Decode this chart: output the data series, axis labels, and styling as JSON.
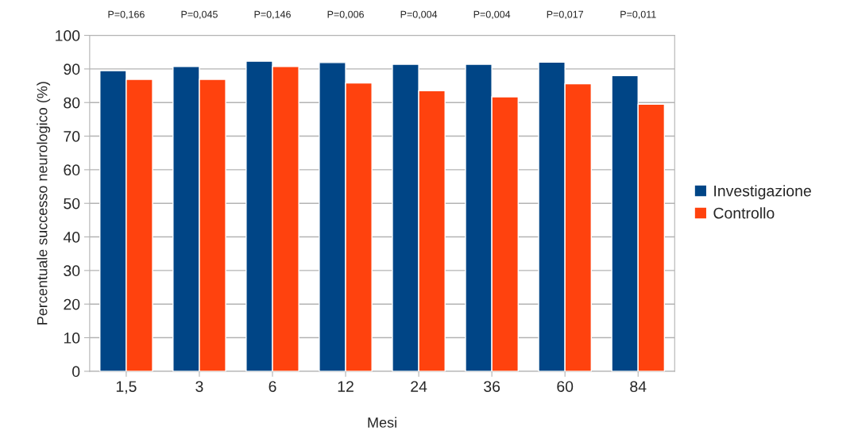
{
  "chart_data": {
    "type": "bar",
    "xlabel": "Mesi",
    "ylabel": "Percentuale successo neurologico (%)",
    "categories": [
      "1,5",
      "3",
      "6",
      "12",
      "24",
      "36",
      "60",
      "84"
    ],
    "series": [
      {
        "name": "Investigazione",
        "color": "#004586",
        "values": [
          89.5,
          90.7,
          92.3,
          91.9,
          91.4,
          91.4,
          92,
          88
        ]
      },
      {
        "name": "Controllo",
        "color": "#ff420e",
        "values": [
          86.9,
          86.9,
          90.7,
          85.8,
          83.5,
          81.7,
          85.6,
          79.5
        ]
      }
    ],
    "ylim": [
      0,
      100
    ],
    "yticks": [
      0,
      10,
      20,
      30,
      40,
      50,
      60,
      70,
      80,
      90,
      100
    ],
    "grid": "y",
    "legend": "right",
    "annotations": [
      "P=0,166",
      "P=0,045",
      "P=0,146",
      "P=0,006",
      "P=0,004",
      "P=0,004",
      "P=0,017",
      "P=0,011"
    ]
  }
}
